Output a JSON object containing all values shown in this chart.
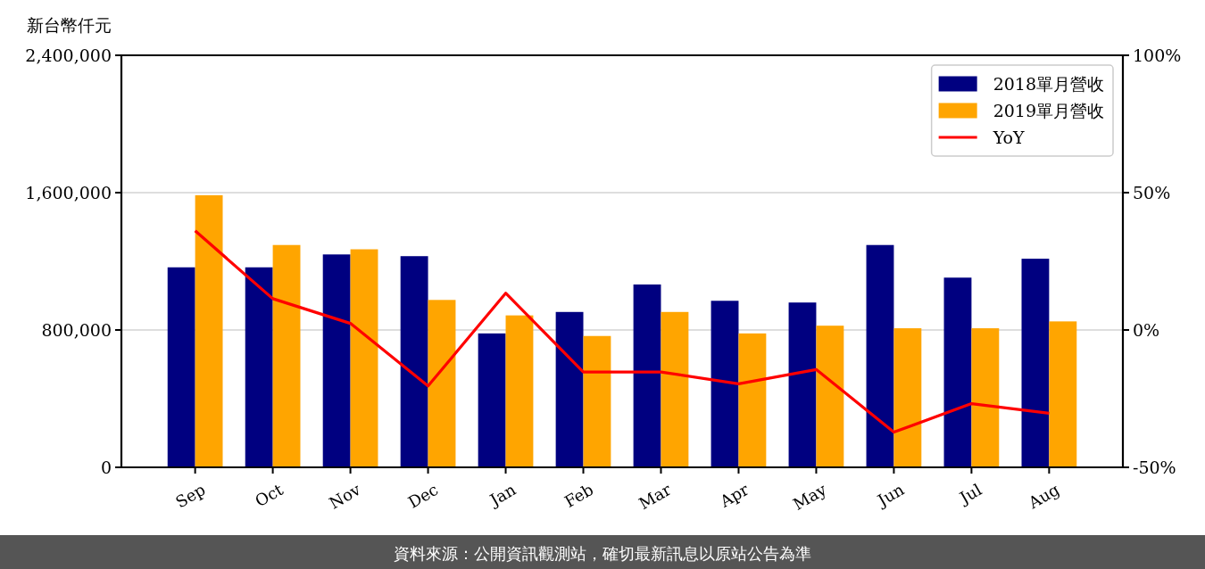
{
  "chart_data": {
    "type": "bar",
    "ylabel": "新台幣仟元",
    "categories": [
      "Sep",
      "Oct",
      "Nov",
      "Dec",
      "Jan",
      "Feb",
      "Mar",
      "Apr",
      "May",
      "Jun",
      "Jul",
      "Aug"
    ],
    "series": [
      {
        "name": "2018單月營收",
        "color": "#000080",
        "values": [
          1165000,
          1165000,
          1240000,
          1230000,
          780000,
          905000,
          1065000,
          970000,
          960000,
          1295000,
          1105000,
          1215000
        ]
      },
      {
        "name": "2019單月營收",
        "color": "#ffa500",
        "values": [
          1585000,
          1295000,
          1270000,
          975000,
          885000,
          765000,
          905000,
          780000,
          825000,
          810000,
          810000,
          850000
        ]
      },
      {
        "name": "YoY",
        "type": "line",
        "axis": "y2",
        "color": "#ff0000",
        "values": [
          36.1,
          11.4,
          2.4,
          -20.4,
          13.4,
          -15.3,
          -15.3,
          -19.6,
          -14.4,
          -37.2,
          -26.8,
          -30.3
        ]
      }
    ],
    "ylim": [
      0,
      2400000
    ],
    "yticks": [
      0,
      {
        "value": 800000,
        "label": "800,000"
      },
      {
        "value": 1600000,
        "label": "1,600,000"
      },
      {
        "value": 2400000,
        "label": "2,400,000"
      }
    ],
    "y2lim": [
      -50,
      100
    ],
    "y2ticks": [
      {
        "value": -50,
        "label": "-50%"
      },
      {
        "value": 0,
        "label": "0%"
      },
      {
        "value": 50,
        "label": "50%"
      },
      {
        "value": 100,
        "label": "100%"
      }
    ],
    "grid": "y",
    "legend": "top right",
    "annotations": [
      "資料來源：公開資訊觀測站，確切最新訊息以原站公告為準"
    ]
  }
}
